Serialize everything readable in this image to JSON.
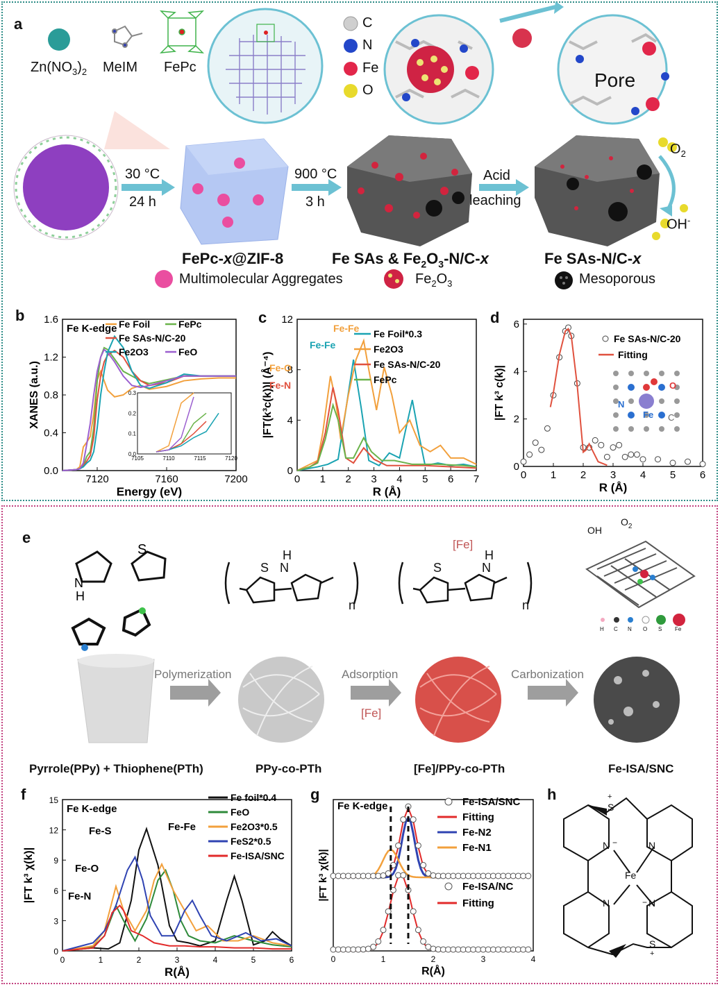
{
  "panels": {
    "a": "a",
    "b": "b",
    "c": "c",
    "d": "d",
    "e": "e",
    "f": "f",
    "g": "g",
    "h": "h"
  },
  "scheme_a": {
    "reagents": {
      "zn": "Zn(NO",
      "zn_sub": "3",
      "zn_close": ")",
      "zn_sub2": "2",
      "melim": "MeIM",
      "fepc": "FePc"
    },
    "legend_atoms": [
      "C",
      "N",
      "Fe",
      "O"
    ],
    "step1_temp": "30 °C",
    "step1_time": "24 h",
    "step2_temp": "900 °C",
    "step2_time": "3 h",
    "step3_a": "Acid",
    "step3_b": "leaching",
    "pore_label": "Pore",
    "o2": "O",
    "o2_sub": "2",
    "oh": "OH",
    "oh_sup": "-",
    "name1_a": "FePc-",
    "name1_x": "x",
    "name1_b": "@ZIF-8",
    "name2_a": "Fe SAs & Fe",
    "name2_s1": "2",
    "name2_b": "O",
    "name2_s2": "3",
    "name2_c": "-N/C-",
    "name2_x": "x",
    "name3_a": "Fe SAs-N/C-",
    "name3_x": "x",
    "legend_agg": "Multimolecular Aggregates",
    "legend_fe2o3_a": "Fe",
    "legend_fe2o3_s1": "2",
    "legend_fe2o3_b": "O",
    "legend_fe2o3_s2": "3",
    "legend_meso": "Mesoporous"
  },
  "scheme_e": {
    "step1": "Polymerization",
    "step2": "Adsorption",
    "step2_sub": "[Fe]",
    "step3": "Carbonization",
    "label1": "Pyrrole(PPy) + Thiophene(PTh)",
    "label2": "PPy-co-PTh",
    "label3": "[Fe]/PPy-co-PTh",
    "label4": "Fe-ISA/SNC",
    "fe_tag": "[Fe]",
    "n_sub": "n",
    "S": "S",
    "H": "H",
    "N": "N",
    "oh": "OH",
    "o2": "O",
    "o2_sub": "2",
    "atom_legend": [
      "H",
      "C",
      "N",
      "O",
      "S",
      "Fe"
    ]
  },
  "scheme_h": {
    "S": "S",
    "N": "N",
    "Fe": "Fe",
    "plus": "+",
    "minus": "−"
  },
  "chart_data": [
    {
      "id": "b",
      "type": "line",
      "title": "Fe K-edge",
      "xlabel": "Energy (eV)",
      "ylabel": "XANES (a.u.)",
      "xlim": [
        7100,
        7200
      ],
      "ylim": [
        0,
        1.6
      ],
      "xticks": [
        7120,
        7160,
        7200
      ],
      "yticks": [
        0.0,
        0.4,
        0.8,
        1.2,
        1.6
      ],
      "series": [
        {
          "name": "Fe Foil",
          "color": "#f2a03c",
          "x": [
            7100,
            7108,
            7110,
            7112,
            7114,
            7116,
            7118,
            7120,
            7122,
            7124,
            7126,
            7130,
            7135,
            7140,
            7145,
            7150,
            7160,
            7170,
            7180,
            7190,
            7200
          ],
          "y": [
            0.0,
            0.01,
            0.04,
            0.25,
            0.3,
            0.36,
            0.6,
            0.96,
            1.05,
            0.95,
            0.85,
            0.78,
            0.8,
            0.87,
            0.9,
            0.86,
            0.89,
            0.95,
            0.97,
            0.98,
            0.98
          ]
        },
        {
          "name": "FePc",
          "color": "#6ab34a",
          "x": [
            7100,
            7108,
            7110,
            7112,
            7114,
            7116,
            7118,
            7120,
            7122,
            7124,
            7126,
            7130,
            7135,
            7140,
            7145,
            7150,
            7160,
            7170,
            7180,
            7190,
            7200
          ],
          "y": [
            0.0,
            0.01,
            0.02,
            0.05,
            0.15,
            0.2,
            0.45,
            0.95,
            1.2,
            1.3,
            1.28,
            1.18,
            1.05,
            1.0,
            0.95,
            0.92,
            0.96,
            1.0,
            1.0,
            1.0,
            1.0
          ]
        },
        {
          "name": "Fe SAs-N/C-20",
          "color": "#e0513e",
          "x": [
            7100,
            7108,
            7110,
            7112,
            7114,
            7116,
            7118,
            7120,
            7122,
            7124,
            7126,
            7130,
            7135,
            7140,
            7145,
            7150,
            7160,
            7170,
            7180,
            7190,
            7200
          ],
          "y": [
            0.0,
            0.01,
            0.02,
            0.05,
            0.1,
            0.16,
            0.35,
            0.75,
            1.0,
            1.15,
            1.22,
            1.27,
            1.2,
            1.05,
            0.95,
            0.9,
            0.93,
            1.0,
            1.0,
            1.0,
            1.0
          ]
        },
        {
          "name": "Fe2O3",
          "color": "#1aa3b2",
          "x": [
            7100,
            7108,
            7110,
            7112,
            7114,
            7116,
            7118,
            7120,
            7122,
            7124,
            7126,
            7130,
            7135,
            7140,
            7145,
            7150,
            7160,
            7170,
            7180,
            7190,
            7200
          ],
          "y": [
            0.0,
            0.01,
            0.02,
            0.04,
            0.08,
            0.11,
            0.2,
            0.45,
            0.8,
            1.05,
            1.25,
            1.42,
            1.3,
            1.05,
            0.9,
            0.87,
            0.93,
            1.02,
            1.0,
            1.0,
            1.0
          ]
        },
        {
          "name": "FeO",
          "color": "#9b5fcf",
          "x": [
            7100,
            7108,
            7110,
            7112,
            7114,
            7116,
            7118,
            7120,
            7122,
            7124,
            7126,
            7130,
            7135,
            7140,
            7145,
            7150,
            7160,
            7170,
            7180,
            7190,
            7200
          ],
          "y": [
            0.0,
            0.01,
            0.02,
            0.08,
            0.28,
            0.5,
            0.8,
            1.05,
            1.2,
            1.28,
            1.25,
            1.15,
            1.0,
            0.9,
            0.88,
            0.9,
            0.95,
            1.0,
            1.0,
            1.0,
            1.0
          ]
        }
      ],
      "inset": {
        "xlim": [
          7105,
          7120
        ],
        "ylim": [
          0,
          0.3
        ],
        "xticks": [
          7105,
          7110,
          7115,
          7120
        ],
        "yticks": [
          0.0,
          0.1,
          0.2,
          0.3
        ]
      }
    },
    {
      "id": "c",
      "type": "line",
      "xlabel": "R (Å)",
      "ylabel": "|FT(k³c(k))| (Å⁻⁴)",
      "xlim": [
        0,
        7
      ],
      "ylim": [
        0,
        12
      ],
      "xticks": [
        0,
        1,
        2,
        3,
        4,
        5,
        6,
        7
      ],
      "yticks": [
        0,
        4,
        8,
        12
      ],
      "annotations": [
        "Fe-Fe",
        "Fe-Fe",
        "Fe-O",
        "Fe-N"
      ],
      "series": [
        {
          "name": "Fe Foil*0.3",
          "color": "#1aa3b2",
          "x": [
            0,
            0.8,
            1.2,
            1.6,
            1.9,
            2.2,
            2.5,
            2.8,
            3.2,
            3.6,
            4.0,
            4.3,
            4.5,
            4.7,
            5.0,
            5.5,
            6.0,
            6.5,
            7.0
          ],
          "y": [
            0,
            0.3,
            0.5,
            0.9,
            4.8,
            8.8,
            5.0,
            0.8,
            0.4,
            1.4,
            1.0,
            3.8,
            5.6,
            3.4,
            0.4,
            0.6,
            0.4,
            0.5,
            0.3
          ]
        },
        {
          "name": "Fe2O3",
          "color": "#f2a03c",
          "x": [
            0,
            0.8,
            1.0,
            1.3,
            1.5,
            1.7,
            2.0,
            2.3,
            2.6,
            2.8,
            3.1,
            3.4,
            3.7,
            4.0,
            4.4,
            4.8,
            5.2,
            5.6,
            6.0,
            6.5,
            7.0
          ],
          "y": [
            0,
            0.8,
            3.0,
            7.5,
            5.6,
            2.5,
            6.0,
            8.8,
            10.3,
            8.0,
            4.8,
            8.2,
            6.0,
            3.0,
            4.0,
            2.0,
            1.5,
            2.0,
            1.0,
            1.0,
            0.5
          ]
        },
        {
          "name": "Fe SAs-N/C-20",
          "color": "#e0513e",
          "x": [
            0,
            0.5,
            0.8,
            1.1,
            1.4,
            1.6,
            1.9,
            2.2,
            2.6,
            3.0,
            3.5,
            4.0,
            5.0,
            6.0,
            7.0
          ],
          "y": [
            0,
            0.3,
            0.7,
            3.0,
            6.6,
            4.8,
            1.0,
            0.6,
            1.8,
            0.9,
            0.4,
            0.4,
            0.4,
            0.3,
            0.2
          ]
        },
        {
          "name": "FePc",
          "color": "#6ab34a",
          "x": [
            0,
            0.5,
            0.8,
            1.1,
            1.4,
            1.6,
            1.9,
            2.2,
            2.6,
            2.9,
            3.3,
            3.8,
            4.5,
            5.5,
            6.5,
            7.0
          ],
          "y": [
            0,
            0.3,
            0.6,
            2.5,
            5.2,
            4.0,
            1.0,
            1.0,
            2.6,
            1.5,
            0.8,
            0.8,
            0.5,
            0.5,
            0.4,
            0.3
          ]
        }
      ]
    },
    {
      "id": "d",
      "type": "line",
      "xlabel": "R (Å)",
      "ylabel": "|FT k³ c(k)|",
      "xlim": [
        0,
        6
      ],
      "ylim": [
        0,
        6.2
      ],
      "xticks": [
        0,
        1,
        2,
        3,
        4,
        5,
        6
      ],
      "yticks": [
        0,
        2,
        4,
        6
      ],
      "series": [
        {
          "name": "Fe SAs-N/C-20",
          "marker": "circle",
          "color": "#333333",
          "x": [
            0,
            0.2,
            0.4,
            0.6,
            0.8,
            1.0,
            1.2,
            1.4,
            1.5,
            1.6,
            1.8,
            2.0,
            2.2,
            2.4,
            2.6,
            2.8,
            3.0,
            3.2,
            3.4,
            3.6,
            3.8,
            4.0,
            4.5,
            5.0,
            5.5,
            6.0
          ],
          "y": [
            0.2,
            0.5,
            1.0,
            0.7,
            1.6,
            3.0,
            4.6,
            5.7,
            5.85,
            5.5,
            3.5,
            0.8,
            0.8,
            1.1,
            0.9,
            0.4,
            0.8,
            0.9,
            0.4,
            0.5,
            0.5,
            0.3,
            0.3,
            0.15,
            0.2,
            0.1
          ]
        },
        {
          "name": "Fitting",
          "color": "#e0513e",
          "x": [
            0.9,
            1.0,
            1.2,
            1.4,
            1.5,
            1.6,
            1.8,
            2.0,
            2.1,
            2.2,
            2.3,
            2.5,
            2.8
          ],
          "y": [
            2.5,
            3.1,
            4.7,
            5.7,
            5.8,
            5.5,
            3.4,
            0.6,
            0.7,
            0.95,
            0.7,
            0.2,
            0.05
          ]
        }
      ]
    },
    {
      "id": "f",
      "type": "line",
      "title": "Fe K-edge",
      "xlabel": "R(Å)",
      "ylabel": "|FT k³ χ(k)|",
      "xlim": [
        0,
        6
      ],
      "ylim": [
        0,
        15
      ],
      "xticks": [
        0,
        1,
        2,
        3,
        4,
        5,
        6
      ],
      "yticks": [
        0,
        3,
        6,
        9,
        12,
        15
      ],
      "annotations": [
        "Fe-Fe",
        "Fe-S",
        "Fe-O",
        "Fe-N"
      ],
      "series": [
        {
          "name": "Fe foil*0.4",
          "color": "#111111",
          "x": [
            0,
            0.8,
            1.2,
            1.5,
            1.8,
            2.0,
            2.2,
            2.5,
            2.8,
            3.0,
            3.3,
            3.6,
            4.0,
            4.3,
            4.5,
            4.7,
            5.0,
            5.3,
            5.5,
            5.7,
            6.0
          ],
          "y": [
            0,
            0.3,
            0.2,
            0.8,
            5.0,
            10.0,
            12.1,
            8.5,
            2.5,
            1.0,
            0.8,
            0.5,
            1.0,
            5.0,
            7.4,
            5.0,
            0.6,
            1.0,
            1.9,
            1.2,
            0.5
          ]
        },
        {
          "name": "FeO",
          "color": "#2e8a3a",
          "x": [
            0,
            0.8,
            1.1,
            1.4,
            1.6,
            1.9,
            2.2,
            2.5,
            2.7,
            2.9,
            3.1,
            3.3,
            3.6,
            4.0,
            4.5,
            5.0,
            5.5,
            6.0
          ],
          "y": [
            0,
            0.4,
            1.5,
            4.5,
            3.0,
            1.0,
            3.2,
            7.0,
            8.0,
            6.0,
            3.0,
            1.5,
            1.0,
            0.8,
            1.5,
            1.0,
            0.6,
            0.4
          ]
        },
        {
          "name": "Fe2O3*0.5",
          "color": "#f2a03c",
          "x": [
            0,
            0.8,
            1.1,
            1.4,
            1.6,
            1.9,
            2.2,
            2.4,
            2.6,
            2.9,
            3.2,
            3.5,
            3.8,
            4.2,
            4.6,
            5.0,
            5.5,
            6.0
          ],
          "y": [
            0,
            0.5,
            2.0,
            6.4,
            4.0,
            2.0,
            4.0,
            7.0,
            8.6,
            6.0,
            4.0,
            2.0,
            2.5,
            1.0,
            1.0,
            1.5,
            0.8,
            0.5
          ]
        },
        {
          "name": "FeS2*0.5",
          "color": "#2f43b2",
          "x": [
            0,
            0.8,
            1.1,
            1.4,
            1.7,
            1.9,
            2.1,
            2.3,
            2.6,
            2.9,
            3.2,
            3.4,
            3.6,
            3.9,
            4.3,
            4.8,
            5.2,
            5.6,
            6.0
          ],
          "y": [
            0,
            0.8,
            2.0,
            4.5,
            8.0,
            9.3,
            7.0,
            3.5,
            1.5,
            1.5,
            4.0,
            5.0,
            3.5,
            1.5,
            1.0,
            1.8,
            1.0,
            1.2,
            0.5
          ]
        },
        {
          "name": "Fe-ISA/SNC",
          "color": "#e22a2a",
          "x": [
            0,
            0.8,
            1.1,
            1.3,
            1.5,
            1.6,
            1.8,
            2.1,
            2.4,
            2.8,
            3.2,
            3.6,
            4.0,
            4.5,
            5.0,
            5.5,
            6.0
          ],
          "y": [
            0,
            0.3,
            1.5,
            3.8,
            4.5,
            4.0,
            2.0,
            1.5,
            0.8,
            0.5,
            0.5,
            0.4,
            0.4,
            0.3,
            0.3,
            0.2,
            0.2
          ]
        }
      ]
    },
    {
      "id": "g",
      "type": "line",
      "title": "Fe K-edge",
      "xlabel": "R(Å)",
      "ylabel": "|FT k³ χ(k)|",
      "xlim": [
        0,
        4
      ],
      "xticks": [
        0,
        1,
        2,
        3,
        4
      ],
      "markers_at": [
        1.15,
        1.5
      ],
      "series": [
        {
          "name": "Fe-ISA/SNC",
          "marker": "circle",
          "group": "upper"
        },
        {
          "name": "Fitting",
          "color": "#e22a2a",
          "group": "upper"
        },
        {
          "name": "Fe-N2",
          "color": "#2f43b2",
          "group": "upper"
        },
        {
          "name": "Fe-N1",
          "color": "#f2a03c",
          "group": "upper"
        },
        {
          "name": "Fe-ISA/NC",
          "marker": "circle",
          "group": "lower"
        },
        {
          "name": "Fitting",
          "color": "#e22a2a",
          "group": "lower"
        }
      ]
    }
  ]
}
